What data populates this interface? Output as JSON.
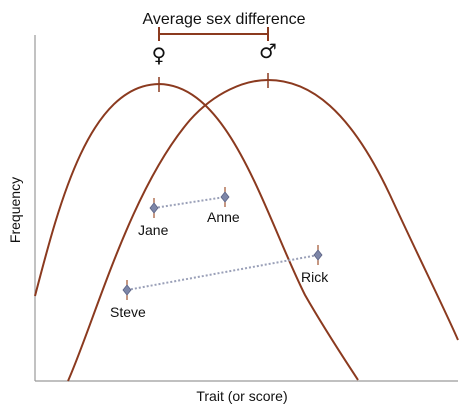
{
  "title": "Average sex difference",
  "female_symbol": "♀",
  "male_symbol": "♂",
  "x_axis_label": "Trait (or score)",
  "y_axis_label": "Frequency",
  "colors": {
    "curve": "#8b3a1f",
    "bracket": "#8b3a1f",
    "axis": "#9a9a9a",
    "point_fill": "#7d86a8",
    "point_tick": "#a0522d",
    "connector": "#9aa0b8"
  },
  "pairs": [
    {
      "a": "Jane",
      "b": "Anne"
    },
    {
      "a": "Steve",
      "b": "Rick"
    }
  ]
}
